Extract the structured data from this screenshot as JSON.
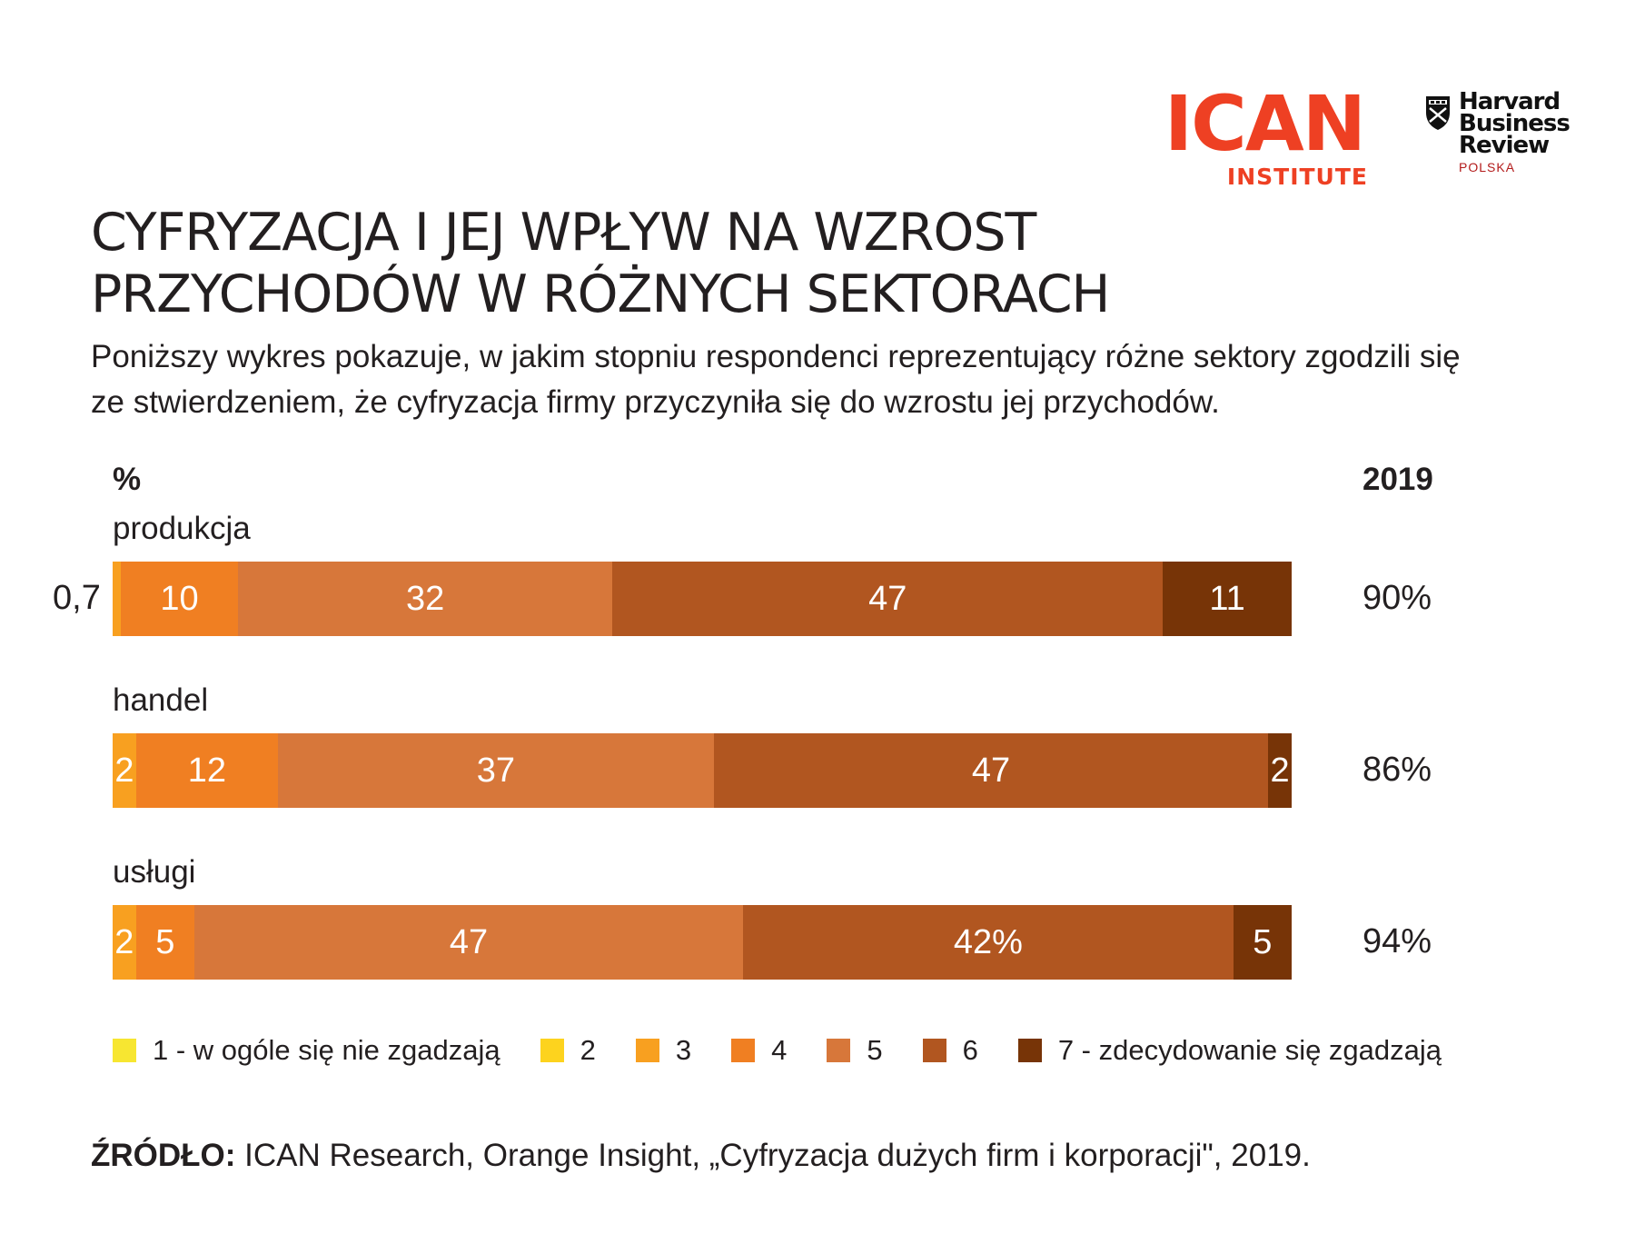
{
  "logos": {
    "ican_main": "ICAN",
    "ican_sub": "INSTITUTE",
    "hbr_line1": "Harvard",
    "hbr_line2": "Business",
    "hbr_line3": "Review",
    "hbr_sub": "POLSKA"
  },
  "title_line1": "CYFRYZACJA I JEJ WPŁYW NA WZROST",
  "title_line2": "PRZYCHODÓW W RÓŻNYCH SEKTORACH",
  "subtitle_line1": "Poniższy wykres pokazuje, w jakim stopniu respondenci reprezentujący różne sektory zgodzili się",
  "subtitle_line2": "ze stwierdzeniem, że cyfryzacja firmy przyczyniła się do wzrostu jej przychodów.",
  "source_label": "ŹRÓDŁO:",
  "source_text": " ICAN Research, Orange Insight, „Cyfryzacja dużych firm i korporacji\", 2019.",
  "chart_data": {
    "type": "bar",
    "orientation": "horizontal",
    "stacked": true,
    "unit_label": "%",
    "total_column_header": "2019",
    "levels": [
      "1 - w ogóle się nie zgadzają",
      "2",
      "3",
      "4",
      "5",
      "6",
      "7 - zdecydowanie się zgadzają"
    ],
    "colors": [
      "#f7e631",
      "#fdd31e",
      "#f8a020",
      "#f07f22",
      "#d7773a",
      "#b15620",
      "#773407"
    ],
    "categories": [
      "produkcja",
      "handel",
      "usługi"
    ],
    "rows": [
      {
        "name": "produkcja",
        "total": "90%",
        "segments": [
          {
            "level": 3,
            "value": 0.7,
            "label": "0,7",
            "label_outside": true
          },
          {
            "level": 4,
            "value": 10,
            "label": "10"
          },
          {
            "level": 5,
            "value": 32,
            "label": "32"
          },
          {
            "level": 6,
            "value": 47,
            "label": "47"
          },
          {
            "level": 7,
            "value": 11,
            "label": "11"
          }
        ]
      },
      {
        "name": "handel",
        "total": "86%",
        "segments": [
          {
            "level": 3,
            "value": 2,
            "label": "2"
          },
          {
            "level": 4,
            "value": 12,
            "label": "12"
          },
          {
            "level": 5,
            "value": 37,
            "label": "37"
          },
          {
            "level": 6,
            "value": 47,
            "label": "47"
          },
          {
            "level": 7,
            "value": 2,
            "label": "2"
          }
        ]
      },
      {
        "name": "usługi",
        "total": "94%",
        "segments": [
          {
            "level": 3,
            "value": 2,
            "label": "2"
          },
          {
            "level": 4,
            "value": 5,
            "label": "5"
          },
          {
            "level": 5,
            "value": 47,
            "label": "47"
          },
          {
            "level": 6,
            "value": 42,
            "label": "42%"
          },
          {
            "level": 7,
            "value": 5,
            "label": "5"
          }
        ]
      }
    ],
    "legend_position": "bottom",
    "grid": false
  }
}
